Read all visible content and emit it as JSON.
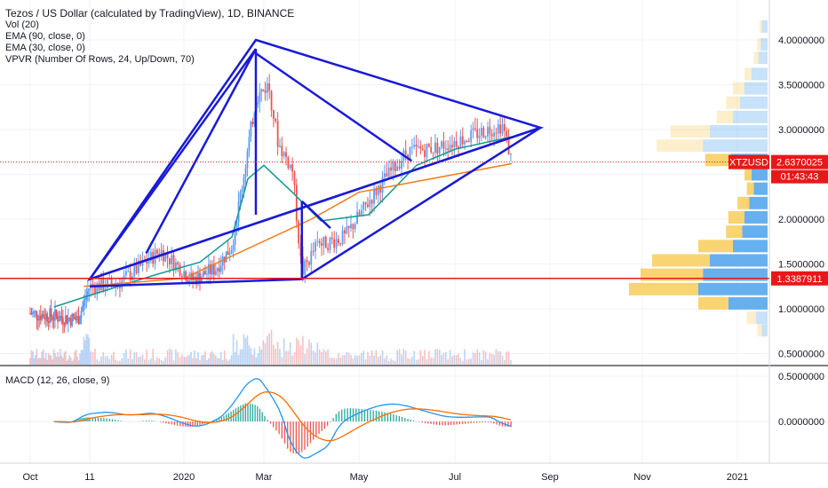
{
  "header": {
    "title": "Tezos / US Dollar (calculated by TradingView), 1D, BINANCE",
    "indicators": [
      "Vol (20)",
      "EMA (90, close, 0)",
      "EMA (30, close, 0)",
      "VPVR (Number Of Rows, 24, Up/Down, 70)"
    ]
  },
  "macd_pane": {
    "label": "MACD (12, 26, close, 9)"
  },
  "colors": {
    "drawing": "#1a1ad6",
    "ema90": "#f07d1a",
    "ema30": "#17988e",
    "up": "#5b9cf6",
    "down": "#ef5350",
    "hline": "#e81818",
    "vpvr_up": "#5eacee",
    "vpvr_down": "#f9d26a",
    "macd_line": "#2196f3",
    "signal_line": "#ff6d00"
  },
  "tags": {
    "symbol": "XTZUSD",
    "last_price": "2.6370025",
    "countdown": "01:43:43",
    "hline_price": "1.3387911"
  },
  "chart_data": {
    "type": "candlestick",
    "title": "Tezos / US Dollar (calculated by TradingView), 1D, BINANCE",
    "xlabel": "",
    "ylabel": "",
    "x_ticks": [
      "Oct",
      "11",
      "2020",
      "Mar",
      "May",
      "Jul",
      "Sep",
      "Nov",
      "2021"
    ],
    "y_ticks": [
      "4.0000000",
      "3.5000000",
      "3.0000000",
      "2.5000000",
      "2.0000000",
      "1.5000000",
      "1.0000000",
      "0.5000000"
    ],
    "macd_y_ticks": [
      "0.5000000",
      "0.0000000"
    ],
    "ylim": [
      0.4,
      4.3
    ],
    "last_price": 2.6370025,
    "horizontal_line": 1.3387911,
    "ema90": [
      [
        0.9,
        1.25
      ],
      [
        2.0,
        1.34
      ],
      [
        3.5,
        2.0
      ],
      [
        4.0,
        2.3
      ],
      [
        5.0,
        2.5
      ],
      [
        5.6,
        2.62
      ]
    ],
    "ema30": [
      [
        0.4,
        1.02
      ],
      [
        1.0,
        1.15
      ],
      [
        1.7,
        1.38
      ],
      [
        2.2,
        1.52
      ],
      [
        2.6,
        1.8
      ],
      [
        2.8,
        2.45
      ],
      [
        3.0,
        2.6
      ],
      [
        3.3,
        2.3
      ],
      [
        3.6,
        1.98
      ],
      [
        4.1,
        2.05
      ],
      [
        4.6,
        2.6
      ],
      [
        5.0,
        2.78
      ],
      [
        5.6,
        2.92
      ]
    ],
    "price_path": [
      [
        0.0,
        0.95
      ],
      [
        0.8,
        0.88
      ],
      [
        1.0,
        1.25
      ],
      [
        1.3,
        1.28
      ],
      [
        1.6,
        1.52
      ],
      [
        1.75,
        1.65
      ],
      [
        2.1,
        1.32
      ],
      [
        2.4,
        1.45
      ],
      [
        2.6,
        1.7
      ],
      [
        2.75,
        2.5
      ],
      [
        2.9,
        3.35
      ],
      [
        3.05,
        3.5
      ],
      [
        3.15,
        2.85
      ],
      [
        3.3,
        2.55
      ],
      [
        3.4,
        1.4
      ],
      [
        3.55,
        1.7
      ],
      [
        3.85,
        1.8
      ],
      [
        4.2,
        2.35
      ],
      [
        4.5,
        2.75
      ],
      [
        4.8,
        2.8
      ],
      [
        5.1,
        2.9
      ],
      [
        5.35,
        3.0
      ],
      [
        5.5,
        3.05
      ],
      [
        5.6,
        2.64
      ]
    ],
    "drawings": {
      "triangle_big": [
        [
          1.0,
          1.33
        ],
        [
          2.9,
          4.0
        ],
        [
          5.9,
          3.02
        ]
      ],
      "inner_lines": [
        [
          [
            1.0,
            1.33
          ],
          [
            2.9,
            3.9
          ]
        ],
        [
          [
            1.6,
            1.62
          ],
          [
            2.9,
            3.9
          ]
        ],
        [
          [
            2.9,
            3.9
          ],
          [
            2.9,
            2.05
          ]
        ],
        [
          [
            2.9,
            3.85
          ],
          [
            4.55,
            2.65
          ]
        ],
        [
          [
            1.0,
            1.33
          ],
          [
            5.9,
            3.02
          ]
        ],
        [
          [
            1.0,
            1.25
          ],
          [
            3.4,
            1.33
          ]
        ],
        [
          [
            3.4,
            2.2
          ],
          [
            3.4,
            1.33
          ]
        ],
        [
          [
            3.4,
            1.33
          ],
          [
            5.9,
            3.02
          ]
        ],
        [
          [
            3.4,
            2.2
          ],
          [
            3.7,
            1.9
          ]
        ]
      ]
    },
    "vpvr_rows": [
      {
        "price": 4.15,
        "up": 0.05,
        "down": 0.02
      },
      {
        "price": 3.95,
        "up": 0.06,
        "down": 0.03
      },
      {
        "price": 3.8,
        "up": 0.08,
        "down": 0.04
      },
      {
        "price": 3.62,
        "up": 0.14,
        "down": 0.06
      },
      {
        "price": 3.46,
        "up": 0.2,
        "down": 0.1
      },
      {
        "price": 3.3,
        "up": 0.24,
        "down": 0.12
      },
      {
        "price": 3.14,
        "up": 0.3,
        "down": 0.14
      },
      {
        "price": 2.98,
        "up": 0.5,
        "down": 0.34
      },
      {
        "price": 2.82,
        "up": 0.56,
        "down": 0.4
      },
      {
        "price": 2.66,
        "up": 0.32,
        "down": 0.22
      },
      {
        "price": 2.5,
        "up": 0.14,
        "down": 0.06
      },
      {
        "price": 2.34,
        "up": 0.12,
        "down": 0.06
      },
      {
        "price": 2.18,
        "up": 0.16,
        "down": 0.1
      },
      {
        "price": 2.02,
        "up": 0.2,
        "down": 0.14
      },
      {
        "price": 1.86,
        "up": 0.22,
        "down": 0.14
      },
      {
        "price": 1.7,
        "up": 0.3,
        "down": 0.3
      },
      {
        "price": 1.54,
        "up": 0.5,
        "down": 0.5
      },
      {
        "price": 1.38,
        "up": 0.56,
        "down": 0.54
      },
      {
        "price": 1.22,
        "up": 0.6,
        "down": 0.6
      },
      {
        "price": 1.06,
        "up": 0.34,
        "down": 0.26
      },
      {
        "price": 0.9,
        "up": 0.1,
        "down": 0.08
      },
      {
        "price": 0.76,
        "up": 0.05,
        "down": 0.04
      }
    ]
  }
}
